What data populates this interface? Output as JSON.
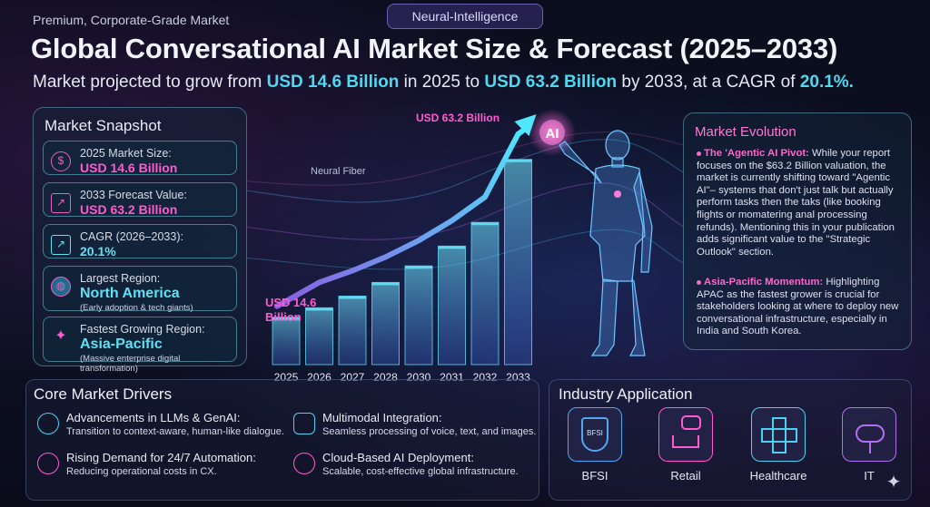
{
  "header": {
    "badge": "Neural-Intelligence",
    "kicker": "Premium, Corporate-Grade Market",
    "title": "Global Conversational AI Market Size & Forecast (2025–2033)",
    "subtitle_pre": "Market projected to grow from ",
    "subtitle_v1": "USD 14.6 Billion",
    "subtitle_mid": " in 2025 to ",
    "subtitle_v2": "USD 63.2 Billion",
    "subtitle_mid2": " by 2033, at a CAGR of ",
    "subtitle_v3": "20.1%."
  },
  "snapshot": {
    "title": "Market Snapshot",
    "cards": [
      {
        "label": "2025 Market Size:",
        "value": "USD 14.6 Billion",
        "icon": "dollar-icon"
      },
      {
        "label": "2033 Forecast Value:",
        "value": "USD 63.2 Billion",
        "icon": "trend-up-icon"
      },
      {
        "label": "CAGR (2026–2033):",
        "value": "20.1%",
        "icon": "growth-icon"
      },
      {
        "label": "Largest Region:",
        "value": "North America",
        "note": "(Early adoption & tech giants)",
        "icon": "globe-icon"
      },
      {
        "label": "Fastest Growing Region:",
        "value": "Asia-Pacific",
        "note": "(Massive enterprise digital transformation)",
        "icon": "map-icon"
      }
    ]
  },
  "chart_data": {
    "type": "bar",
    "categories": [
      "2025",
      "2026",
      "2027",
      "2028",
      "2030",
      "2031",
      "2032",
      "2033"
    ],
    "values": [
      14.6,
      17.5,
      21.1,
      25.3,
      30.4,
      36.5,
      43.8,
      63.2
    ],
    "ylim": [
      0,
      70
    ],
    "grid": false,
    "annotations": {
      "start": "USD 14.6 Billion",
      "end": "USD 63.2 Billion",
      "fiber": "Neural Fiber",
      "ai": "AI"
    },
    "colors": {
      "bar": "#5fd8f0",
      "arrow": "#4fd0f0",
      "label_start": "#ff5ad0",
      "label_end": "#ff5ad0"
    }
  },
  "evolution": {
    "title": "Market Evolution",
    "p1_head": "The 'Agentic AI Pivot:",
    "p1_body": " While your report focuses on the $63.2 Billion valuation, the market is currently shifting toward \"Agentic AI\"– systems that don't just talk but actually perform tasks then the taks (like booking flights or momatering anal processing refunds). Mentioning this in your publication adds significant value to the \"Strategic Outlook\" section.",
    "p2_head": "Asia-Pacific Momentum:",
    "p2_body": " Highlighting APAC as the fastest grower is crucial for stakeholders looking at where to deploy new conversational infrastructure, especially in India and South Korea."
  },
  "drivers": {
    "title": "Core Market Drivers",
    "items": [
      {
        "title": "Advancements in LLMs & GenAI:",
        "desc": "Transition to context-aware, human-like dialogue.",
        "icon": "brain-icon"
      },
      {
        "title": "Multimodal Integration:",
        "desc": "Seamless processing of voice, text, and images.",
        "icon": "chat-icon"
      },
      {
        "title": "Rising Demand for 24/7 Automation:",
        "desc": "Reducing operational costs in CX.",
        "icon": "gear-icon"
      },
      {
        "title": "Cloud-Based AI Deployment:",
        "desc": "Scalable, cost-effective global infrastructure.",
        "icon": "cloud-icon"
      }
    ]
  },
  "industry": {
    "title": "Industry Application",
    "items": [
      {
        "label": "BFSI",
        "icon": "bfsi-shield-icon",
        "glyph": "BFSI"
      },
      {
        "label": "Retail",
        "icon": "cart-icon"
      },
      {
        "label": "Healthcare",
        "icon": "medical-cross-icon"
      },
      {
        "label": "IT",
        "icon": "network-cloud-icon"
      }
    ]
  }
}
